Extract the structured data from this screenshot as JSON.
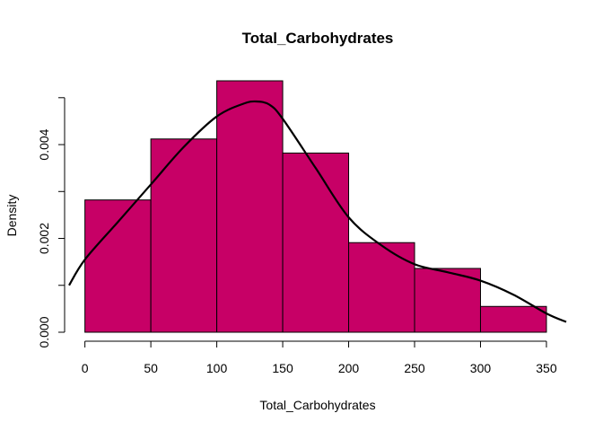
{
  "chart_data": {
    "type": "histogram",
    "title": "Total_Carbohydrates",
    "xlabel": "Total_Carbohydrates",
    "ylabel": "Density",
    "bin_edges": [
      0,
      50,
      100,
      150,
      200,
      250,
      300,
      350
    ],
    "values": [
      0.00282,
      0.00412,
      0.00536,
      0.00382,
      0.00191,
      0.00136,
      0.00055
    ],
    "xlim": [
      -12,
      365
    ],
    "ylim": [
      0,
      0.00536
    ],
    "x_ticks": [
      0,
      50,
      100,
      150,
      200,
      250,
      300,
      350
    ],
    "x_tick_labels": [
      "0",
      "50",
      "100",
      "150",
      "200",
      "250",
      "300",
      "350"
    ],
    "y_ticks": [
      0,
      0.001,
      0.002,
      0.003,
      0.004,
      0.005
    ],
    "y_tick_labels": [
      "0.000",
      "",
      "0.002",
      "",
      "0.004",
      ""
    ],
    "density_curve": {
      "x": [
        -12,
        0,
        25,
        50,
        75,
        100,
        120,
        130,
        140,
        150,
        175,
        200,
        225,
        250,
        275,
        300,
        325,
        350,
        365
      ],
      "y": [
        0.001,
        0.00155,
        0.00235,
        0.00315,
        0.00395,
        0.0046,
        0.00487,
        0.00492,
        0.00485,
        0.00455,
        0.0035,
        0.00245,
        0.00185,
        0.00145,
        0.00128,
        0.0011,
        0.0008,
        0.0004,
        0.00022
      ]
    },
    "bar_color": "#C70066",
    "bar_border_color": "#000000",
    "curve_color": "#000000",
    "grid": false,
    "legend": "none"
  }
}
